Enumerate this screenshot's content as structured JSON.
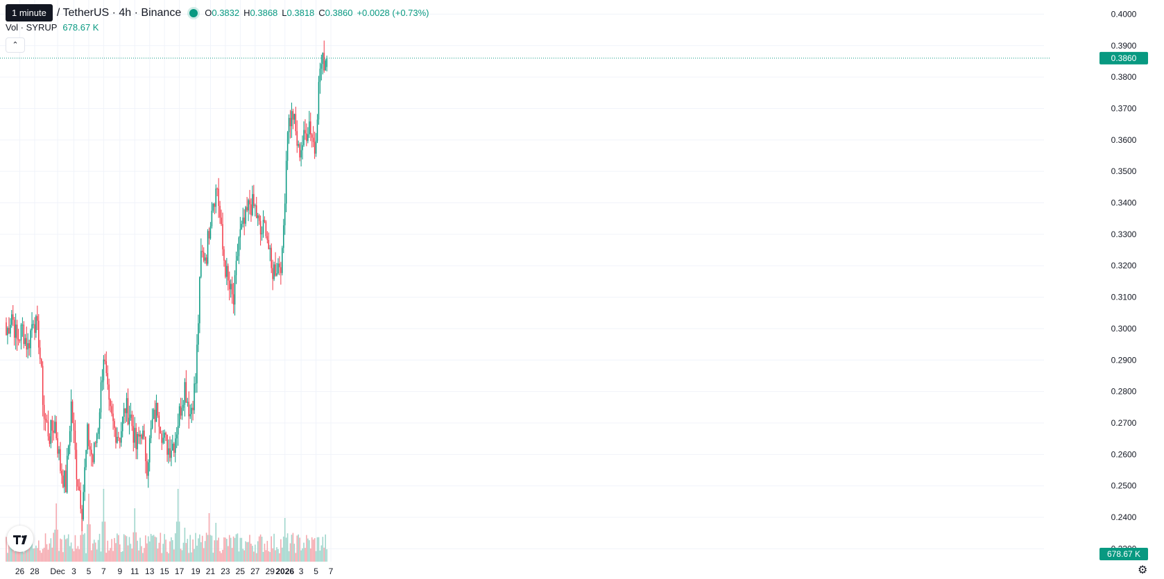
{
  "legend": {
    "interval_tooltip": "1 minute",
    "symbol": "/ TetherUS · 4h · Binance",
    "open_label": "O",
    "open": "0.3832",
    "high_label": "H",
    "high": "0.3868",
    "low_label": "L",
    "low": "0.3818",
    "close_label": "C",
    "close": "0.3860",
    "change": "+0.0028 (+0.73%)",
    "volume_label": "Vol · SYRUP",
    "volume": "678.67 K"
  },
  "colors": {
    "up": "#089981",
    "down": "#f23645",
    "up_volume": "#9fd6cc",
    "down_volume": "#f5a7ad",
    "grid": "#f0f3fa"
  },
  "icons": [
    "chevron-up-icon",
    "tradingview-logo-icon",
    "settings-icon"
  ],
  "chart_data": {
    "type": "candlestick",
    "price_axis": {
      "range": [
        0.2259,
        0.4045
      ],
      "ticks": [
        "0.4000",
        "0.3900",
        "0.3800",
        "0.3700",
        "0.3600",
        "0.3500",
        "0.3400",
        "0.3300",
        "0.3200",
        "0.3100",
        "0.3000",
        "0.2900",
        "0.2800",
        "0.2700",
        "0.2600",
        "0.2500",
        "0.2400",
        "0.2300"
      ]
    },
    "last_price": "0.3860",
    "last_volume": "678.67 K",
    "time_axis": {
      "ticks": [
        "26",
        "28",
        "Dec",
        "3",
        "5",
        "7",
        "9",
        "11",
        "13",
        "15",
        "17",
        "19",
        "21",
        "23",
        "25",
        "27",
        "29",
        "2026",
        "3",
        "5",
        "7"
      ],
      "tick_index": [
        10,
        21,
        38,
        50,
        61,
        72,
        84,
        95,
        106,
        117,
        128,
        140,
        151,
        162,
        173,
        184,
        195,
        206,
        218,
        229,
        240
      ],
      "bold": [
        "2026"
      ]
    },
    "candles_per_day": 6,
    "ohlc_anchors": [
      [
        0,
        0.298
      ],
      [
        4,
        0.305
      ],
      [
        8,
        0.296
      ],
      [
        12,
        0.3
      ],
      [
        16,
        0.294
      ],
      [
        20,
        0.304
      ],
      [
        24,
        0.297
      ],
      [
        28,
        0.272
      ],
      [
        32,
        0.266
      ],
      [
        36,
        0.27
      ],
      [
        40,
        0.256
      ],
      [
        44,
        0.25
      ],
      [
        48,
        0.276
      ],
      [
        52,
        0.255
      ],
      [
        56,
        0.243
      ],
      [
        60,
        0.266
      ],
      [
        64,
        0.258
      ],
      [
        68,
        0.27
      ],
      [
        72,
        0.292
      ],
      [
        76,
        0.274
      ],
      [
        80,
        0.268
      ],
      [
        84,
        0.266
      ],
      [
        88,
        0.275
      ],
      [
        92,
        0.272
      ],
      [
        96,
        0.262
      ],
      [
        100,
        0.268
      ],
      [
        104,
        0.257
      ],
      [
        108,
        0.27
      ],
      [
        112,
        0.275
      ],
      [
        116,
        0.265
      ],
      [
        120,
        0.262
      ],
      [
        124,
        0.264
      ],
      [
        128,
        0.273
      ],
      [
        132,
        0.282
      ],
      [
        136,
        0.273
      ],
      [
        140,
        0.283
      ],
      [
        144,
        0.323
      ],
      [
        148,
        0.324
      ],
      [
        152,
        0.34
      ],
      [
        156,
        0.345
      ],
      [
        160,
        0.325
      ],
      [
        164,
        0.314
      ],
      [
        168,
        0.308
      ],
      [
        172,
        0.329
      ],
      [
        176,
        0.333
      ],
      [
        180,
        0.34
      ],
      [
        184,
        0.338
      ],
      [
        188,
        0.33
      ],
      [
        192,
        0.333
      ],
      [
        196,
        0.318
      ],
      [
        200,
        0.32
      ],
      [
        204,
        0.322
      ],
      [
        208,
        0.365
      ],
      [
        212,
        0.368
      ],
      [
        216,
        0.356
      ],
      [
        220,
        0.36
      ],
      [
        224,
        0.366
      ],
      [
        228,
        0.357
      ],
      [
        232,
        0.383
      ],
      [
        236,
        0.386
      ]
    ],
    "volume_note": "volume bars follow each candle's direction; peaks near Dec 1, Dec 5, Dec 7, Dec 11, Dec 17, Jan 1"
  }
}
